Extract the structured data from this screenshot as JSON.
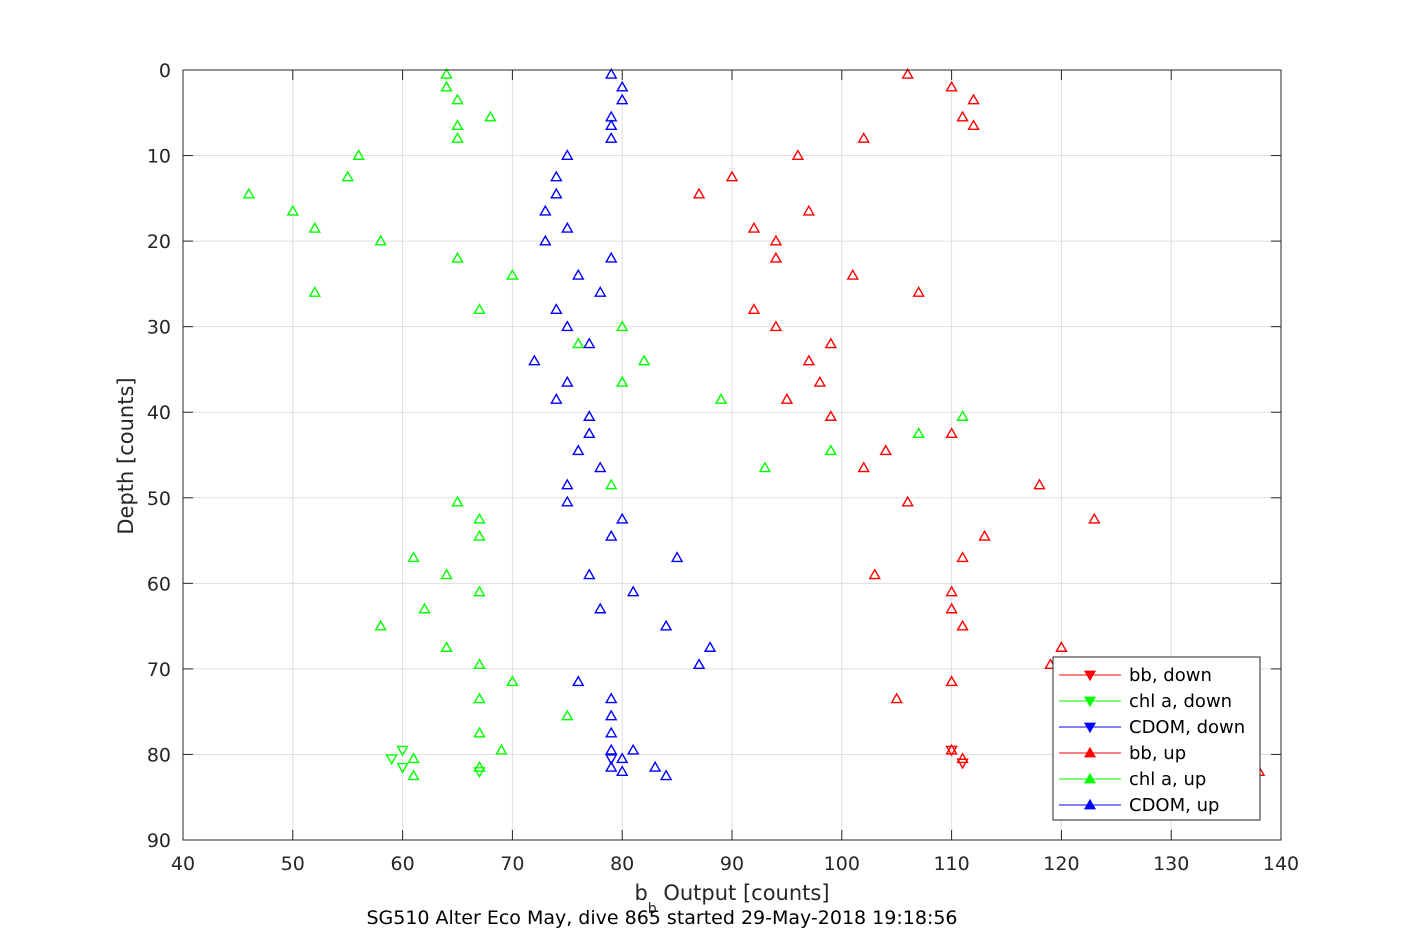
{
  "chart_data": {
    "type": "scatter",
    "title": "SG510 Alter Eco May, dive 865 started 29-May-2018 19:18:56",
    "xlabel": {
      "main": "b",
      "subscript": "b",
      "rest": " Output [counts]"
    },
    "ylabel": "Depth [counts]",
    "xlim": [
      40,
      140
    ],
    "ylim": [
      0,
      90
    ],
    "y_reversed": true,
    "x_ticks": [
      "40",
      "50",
      "60",
      "70",
      "80",
      "90",
      "100",
      "110",
      "120",
      "130",
      "140"
    ],
    "y_ticks": [
      "0",
      "10",
      "20",
      "30",
      "40",
      "50",
      "60",
      "70",
      "80",
      "90"
    ],
    "grid": true,
    "legend_position": "bottom-right",
    "series": [
      {
        "name": "bb, down",
        "color": "#ff0000",
        "marker": "triangle-down",
        "points": [
          [
            110,
            79.5
          ],
          [
            111,
            81
          ]
        ]
      },
      {
        "name": "chl a, down",
        "color": "#00ff00",
        "marker": "triangle-down",
        "points": [
          [
            60,
            79.5
          ],
          [
            59,
            80.5
          ],
          [
            60,
            81.5
          ],
          [
            67,
            82
          ]
        ]
      },
      {
        "name": "CDOM, down",
        "color": "#0000ff",
        "marker": "triangle-down",
        "points": [
          [
            79,
            80.5
          ]
        ]
      },
      {
        "name": "bb, up",
        "color": "#ff0000",
        "marker": "triangle-up",
        "points": [
          [
            106,
            0.5
          ],
          [
            110,
            2
          ],
          [
            112,
            3.5
          ],
          [
            111,
            5.5
          ],
          [
            112,
            6.5
          ],
          [
            102,
            8
          ],
          [
            96,
            10
          ],
          [
            90,
            12.5
          ],
          [
            87,
            14.5
          ],
          [
            97,
            16.5
          ],
          [
            92,
            18.5
          ],
          [
            94,
            20
          ],
          [
            94,
            22
          ],
          [
            101,
            24
          ],
          [
            107,
            26
          ],
          [
            92,
            28
          ],
          [
            94,
            30
          ],
          [
            99,
            32
          ],
          [
            97,
            34
          ],
          [
            98,
            36.5
          ],
          [
            95,
            38.5
          ],
          [
            99,
            40.5
          ],
          [
            110,
            42.5
          ],
          [
            104,
            44.5
          ],
          [
            102,
            46.5
          ],
          [
            118,
            48.5
          ],
          [
            106,
            50.5
          ],
          [
            123,
            52.5
          ],
          [
            113,
            54.5
          ],
          [
            111,
            57
          ],
          [
            103,
            59
          ],
          [
            110,
            61
          ],
          [
            110,
            63
          ],
          [
            111,
            65
          ],
          [
            120,
            67.5
          ],
          [
            119,
            69.5
          ],
          [
            110,
            71.5
          ],
          [
            105,
            73.5
          ],
          [
            110,
            79.5
          ],
          [
            111,
            80.5
          ],
          [
            138,
            82
          ]
        ]
      },
      {
        "name": "chl a, up",
        "color": "#00ff00",
        "marker": "triangle-up",
        "points": [
          [
            64,
            0.5
          ],
          [
            64,
            2
          ],
          [
            65,
            3.5
          ],
          [
            68,
            5.5
          ],
          [
            65,
            6.5
          ],
          [
            65,
            8
          ],
          [
            56,
            10
          ],
          [
            55,
            12.5
          ],
          [
            46,
            14.5
          ],
          [
            50,
            16.5
          ],
          [
            52,
            18.5
          ],
          [
            58,
            20
          ],
          [
            65,
            22
          ],
          [
            70,
            24
          ],
          [
            52,
            26
          ],
          [
            67,
            28
          ],
          [
            80,
            30
          ],
          [
            76,
            32
          ],
          [
            82,
            34
          ],
          [
            80,
            36.5
          ],
          [
            89,
            38.5
          ],
          [
            111,
            40.5
          ],
          [
            107,
            42.5
          ],
          [
            99,
            44.5
          ],
          [
            93,
            46.5
          ],
          [
            79,
            48.5
          ],
          [
            65,
            50.5
          ],
          [
            67,
            52.5
          ],
          [
            67,
            54.5
          ],
          [
            61,
            57
          ],
          [
            64,
            59
          ],
          [
            67,
            61
          ],
          [
            62,
            63
          ],
          [
            58,
            65
          ],
          [
            64,
            67.5
          ],
          [
            67,
            69.5
          ],
          [
            70,
            71.5
          ],
          [
            67,
            73.5
          ],
          [
            75,
            75.5
          ],
          [
            67,
            77.5
          ],
          [
            69,
            79.5
          ],
          [
            61,
            80.5
          ],
          [
            67,
            81.5
          ],
          [
            61,
            82.5
          ]
        ]
      },
      {
        "name": "CDOM, up",
        "color": "#0000ff",
        "marker": "triangle-up",
        "points": [
          [
            79,
            0.5
          ],
          [
            80,
            2
          ],
          [
            80,
            3.5
          ],
          [
            79,
            5.5
          ],
          [
            79,
            6.5
          ],
          [
            79,
            8
          ],
          [
            75,
            10
          ],
          [
            74,
            12.5
          ],
          [
            74,
            14.5
          ],
          [
            73,
            16.5
          ],
          [
            75,
            18.5
          ],
          [
            73,
            20
          ],
          [
            79,
            22
          ],
          [
            76,
            24
          ],
          [
            78,
            26
          ],
          [
            74,
            28
          ],
          [
            75,
            30
          ],
          [
            77,
            32
          ],
          [
            72,
            34
          ],
          [
            75,
            36.5
          ],
          [
            74,
            38.5
          ],
          [
            77,
            40.5
          ],
          [
            77,
            42.5
          ],
          [
            76,
            44.5
          ],
          [
            78,
            46.5
          ],
          [
            75,
            48.5
          ],
          [
            75,
            50.5
          ],
          [
            80,
            52.5
          ],
          [
            79,
            54.5
          ],
          [
            85,
            57
          ],
          [
            77,
            59
          ],
          [
            81,
            61
          ],
          [
            78,
            63
          ],
          [
            84,
            65
          ],
          [
            88,
            67.5
          ],
          [
            87,
            69.5
          ],
          [
            76,
            71.5
          ],
          [
            79,
            73.5
          ],
          [
            79,
            75.5
          ],
          [
            79,
            77.5
          ],
          [
            79,
            79.5
          ],
          [
            81,
            79.5
          ],
          [
            80,
            80.5
          ],
          [
            79,
            81.5
          ],
          [
            83,
            81.5
          ],
          [
            80,
            82
          ],
          [
            84,
            82.5
          ]
        ]
      }
    ]
  }
}
